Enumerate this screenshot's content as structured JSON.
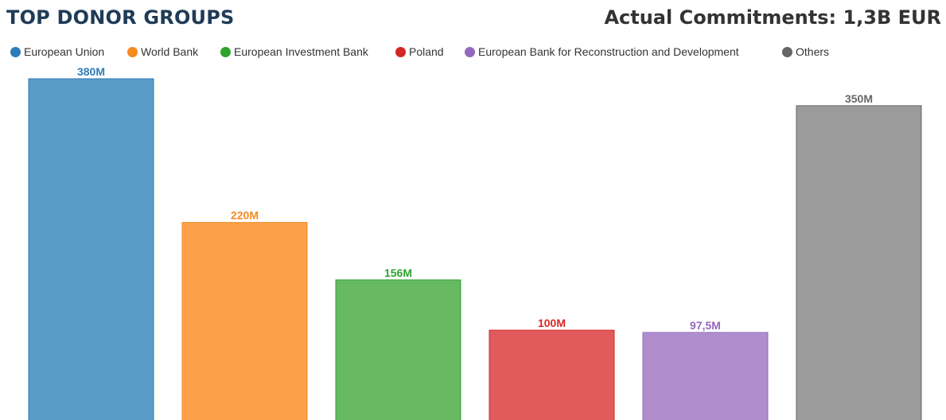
{
  "title": "TOP DONOR GROUPS",
  "commitments": "Actual Commitments: 1,3B EUR",
  "chart_data": {
    "type": "bar",
    "legend_position": "top-left",
    "grid": false,
    "ylim": [
      0,
      380
    ],
    "series": [
      {
        "name": "European Union",
        "value": 380,
        "label": "380M",
        "color": "#5b9bc8",
        "label_color": "#2e7bb6"
      },
      {
        "name": "World Bank",
        "value": 220,
        "label": "220M",
        "color": "#fda14a",
        "label_color": "#f58a1f"
      },
      {
        "name": "European Investment Bank",
        "value": 156,
        "label": "156M",
        "color": "#66b962",
        "label_color": "#2ea32e"
      },
      {
        "name": "Poland",
        "value": 100,
        "label": "100M",
        "color": "#e05c5c",
        "label_color": "#d62728"
      },
      {
        "name": "European Bank for Reconstruction and Development",
        "value": 97.5,
        "label": "97,5M",
        "color": "#b08ece",
        "label_color": "#9467bd"
      },
      {
        "name": "Others",
        "value": 350,
        "label": "350M",
        "color": "#9b9b9b",
        "label_color": "#666666"
      }
    ]
  }
}
